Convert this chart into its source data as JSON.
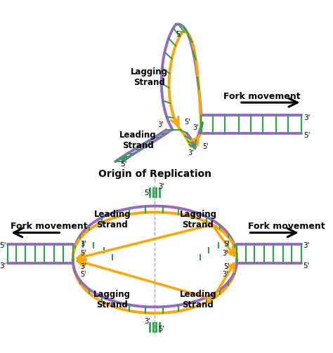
{
  "title": "Origin of Replication",
  "bg": "#ffffff",
  "purple": "#9966CC",
  "orange": "#FFA500",
  "green": "#22AA44",
  "black": "#000000",
  "fork_label": "Fork movement",
  "leading_label": "Leading\nStrand",
  "lagging_label": "Lagging\nStrand"
}
